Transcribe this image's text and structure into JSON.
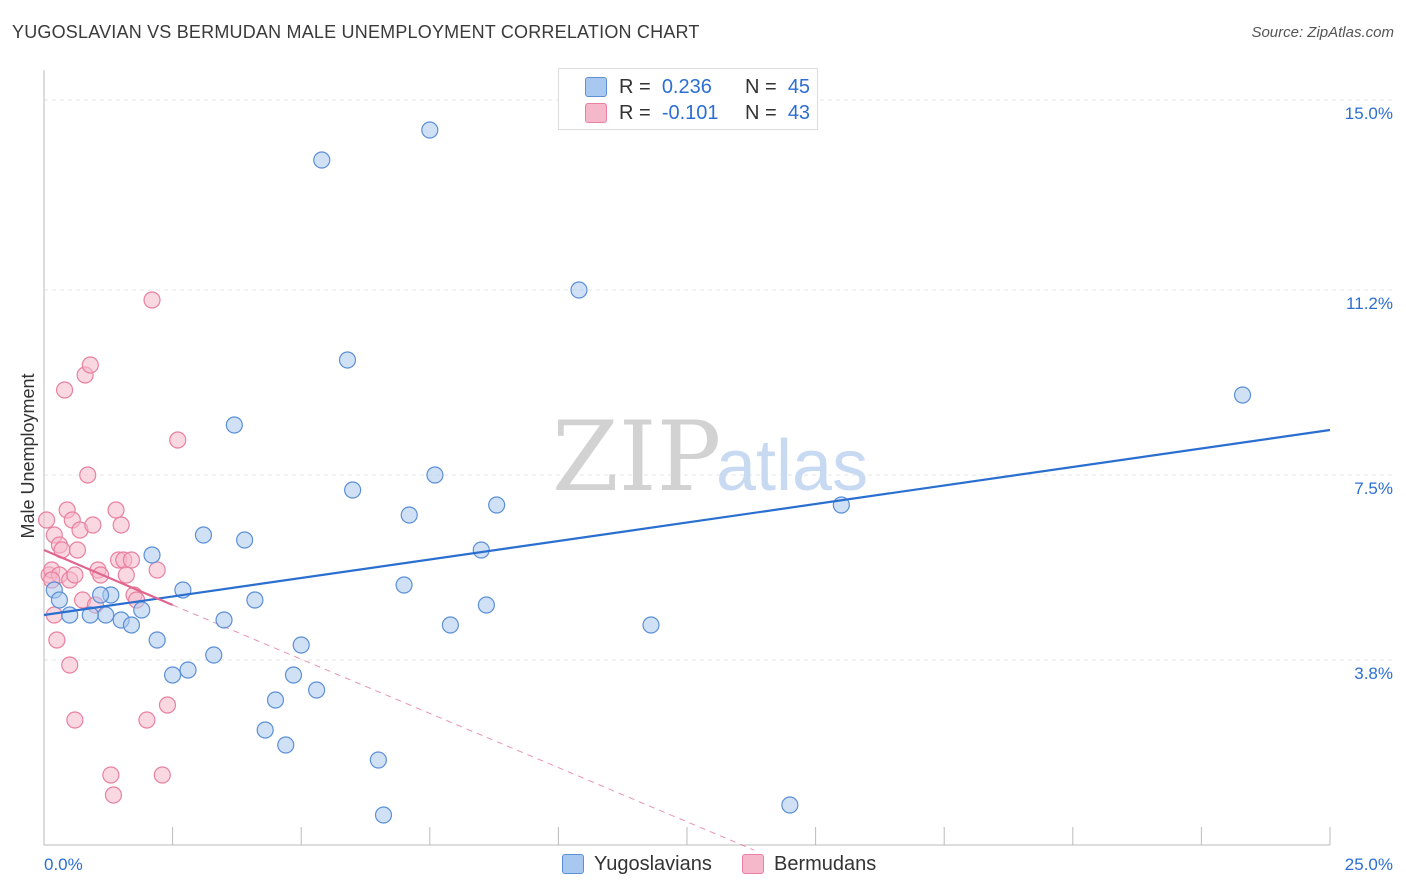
{
  "title": "YUGOSLAVIAN VS BERMUDAN MALE UNEMPLOYMENT CORRELATION CHART",
  "source": "Source: ZipAtlas.com",
  "watermark": {
    "zip": "ZIP",
    "atlas": "atlas"
  },
  "legend": {
    "r_label": "R =",
    "n_label": "N =",
    "rows": [
      {
        "name": "Yugoslavians",
        "r": "0.236",
        "n": "45"
      },
      {
        "name": "Bermudans",
        "r": "-0.101",
        "n": "43"
      }
    ]
  },
  "colors": {
    "blue_fill": "#a9c8ef",
    "blue_stroke": "#5b8fd6",
    "blue_line": "#2a6fd0",
    "pink_fill": "#f5b8cb",
    "pink_stroke": "#e8809f",
    "pink_line": "#e06690",
    "axis_text": "#2c6fd1",
    "grid": "#e6e6e6"
  },
  "chart_data": {
    "type": "scatter",
    "title": "YUGOSLAVIAN VS BERMUDAN MALE UNEMPLOYMENT CORRELATION CHART",
    "xlabel": "",
    "ylabel": "Male Unemployment",
    "xlim": [
      0,
      25
    ],
    "ylim": [
      0,
      15.6
    ],
    "x_tick_labels": {
      "min": "0.0%",
      "max": "25.0%"
    },
    "y_ticks": [
      {
        "value": 3.8,
        "label": "3.8%"
      },
      {
        "value": 7.5,
        "label": "7.5%"
      },
      {
        "value": 11.2,
        "label": "11.2%"
      },
      {
        "value": 15.0,
        "label": "15.0%"
      }
    ],
    "x_minor_ticks": [
      0,
      2.5,
      5,
      7.5,
      10,
      12.5,
      15,
      17.5,
      20,
      22.5,
      25
    ],
    "series": [
      {
        "name": "Yugoslavians",
        "trend": {
          "x": [
            0,
            25
          ],
          "y": [
            4.7,
            8.4
          ]
        },
        "points": [
          [
            0.2,
            5.2
          ],
          [
            0.3,
            5.0
          ],
          [
            0.5,
            4.7
          ],
          [
            1.2,
            4.7
          ],
          [
            0.9,
            4.7
          ],
          [
            1.3,
            5.1
          ],
          [
            1.1,
            5.1
          ],
          [
            1.5,
            4.6
          ],
          [
            1.7,
            4.5
          ],
          [
            1.9,
            4.8
          ],
          [
            2.1,
            5.9
          ],
          [
            2.2,
            4.2
          ],
          [
            2.5,
            3.5
          ],
          [
            2.7,
            5.2
          ],
          [
            2.8,
            3.6
          ],
          [
            3.1,
            6.3
          ],
          [
            3.3,
            3.9
          ],
          [
            3.5,
            4.6
          ],
          [
            3.7,
            8.5
          ],
          [
            3.9,
            6.2
          ],
          [
            4.1,
            5.0
          ],
          [
            4.3,
            2.4
          ],
          [
            4.5,
            3.0
          ],
          [
            4.7,
            2.1
          ],
          [
            4.85,
            3.5
          ],
          [
            5.0,
            4.1
          ],
          [
            5.3,
            3.2
          ],
          [
            5.4,
            13.8
          ],
          [
            5.9,
            9.8
          ],
          [
            6.0,
            7.2
          ],
          [
            6.5,
            1.8
          ],
          [
            6.6,
            0.7
          ],
          [
            7.0,
            5.3
          ],
          [
            7.1,
            6.7
          ],
          [
            7.5,
            14.4
          ],
          [
            7.6,
            7.5
          ],
          [
            7.9,
            4.5
          ],
          [
            8.5,
            6.0
          ],
          [
            8.6,
            4.9
          ],
          [
            8.8,
            6.9
          ],
          [
            10.4,
            11.2
          ],
          [
            11.8,
            4.5
          ],
          [
            14.5,
            0.9
          ],
          [
            15.5,
            6.9
          ],
          [
            23.3,
            9.1
          ]
        ]
      },
      {
        "name": "Bermudans",
        "trend": {
          "x": [
            0,
            2.5
          ],
          "y": [
            6.0,
            4.9
          ]
        },
        "trend_extended": {
          "x": [
            2.5,
            13.8
          ],
          "y": [
            4.9,
            0.0
          ]
        },
        "points": [
          [
            0.05,
            6.6
          ],
          [
            0.1,
            5.5
          ],
          [
            0.15,
            5.6
          ],
          [
            0.2,
            6.3
          ],
          [
            0.2,
            4.7
          ],
          [
            0.25,
            4.2
          ],
          [
            0.3,
            5.5
          ],
          [
            0.3,
            6.1
          ],
          [
            0.35,
            6.0
          ],
          [
            0.4,
            9.2
          ],
          [
            0.45,
            6.8
          ],
          [
            0.5,
            5.4
          ],
          [
            0.5,
            3.7
          ],
          [
            0.55,
            6.6
          ],
          [
            0.6,
            5.5
          ],
          [
            0.6,
            2.6
          ],
          [
            0.65,
            6.0
          ],
          [
            0.7,
            6.4
          ],
          [
            0.75,
            5.0
          ],
          [
            0.8,
            9.5
          ],
          [
            0.85,
            7.5
          ],
          [
            0.9,
            9.7
          ],
          [
            0.95,
            6.5
          ],
          [
            1.0,
            4.9
          ],
          [
            1.05,
            5.6
          ],
          [
            1.1,
            5.5
          ],
          [
            1.3,
            1.5
          ],
          [
            1.35,
            1.1
          ],
          [
            1.4,
            6.8
          ],
          [
            1.45,
            5.8
          ],
          [
            1.5,
            6.5
          ],
          [
            1.55,
            5.8
          ],
          [
            1.6,
            5.5
          ],
          [
            1.7,
            5.8
          ],
          [
            1.75,
            5.1
          ],
          [
            1.8,
            5.0
          ],
          [
            2.0,
            2.6
          ],
          [
            2.1,
            11.0
          ],
          [
            2.2,
            5.6
          ],
          [
            2.3,
            1.5
          ],
          [
            2.4,
            2.9
          ],
          [
            2.6,
            8.2
          ],
          [
            0.15,
            5.4
          ]
        ]
      }
    ]
  }
}
